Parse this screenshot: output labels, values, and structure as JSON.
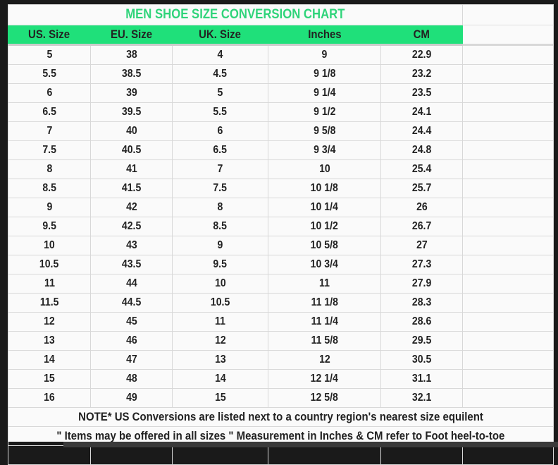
{
  "title": "MEN SHOE SIZE CONVERSION CHART",
  "headers": [
    "US. Size",
    "EU. Size",
    "UK. Size",
    "Inches",
    "CM"
  ],
  "rows": [
    [
      "5",
      "38",
      "4",
      "9",
      "22.9"
    ],
    [
      "5.5",
      "38.5",
      "4.5",
      "9 1/8",
      "23.2"
    ],
    [
      "6",
      "39",
      "5",
      "9 1/4",
      "23.5"
    ],
    [
      "6.5",
      "39.5",
      "5.5",
      "9 1/2",
      "24.1"
    ],
    [
      "7",
      "40",
      "6",
      "9 5/8",
      "24.4"
    ],
    [
      "7.5",
      "40.5",
      "6.5",
      "9 3/4",
      "24.8"
    ],
    [
      "8",
      "41",
      "7",
      "10",
      "25.4"
    ],
    [
      "8.5",
      "41.5",
      "7.5",
      "10 1/8",
      "25.7"
    ],
    [
      "9",
      "42",
      "8",
      "10 1/4",
      "26"
    ],
    [
      "9.5",
      "42.5",
      "8.5",
      "10 1/2",
      "26.7"
    ],
    [
      "10",
      "43",
      "9",
      "10 5/8",
      "27"
    ],
    [
      "10.5",
      "43.5",
      "9.5",
      "10 3/4",
      "27.3"
    ],
    [
      "11",
      "44",
      "10",
      "11",
      "27.9"
    ],
    [
      "11.5",
      "44.5",
      "10.5",
      "11 1/8",
      "28.3"
    ],
    [
      "12",
      "45",
      "11",
      "11 1/4",
      "28.6"
    ],
    [
      "13",
      "46",
      "12",
      "11 5/8",
      "29.5"
    ],
    [
      "14",
      "47",
      "13",
      "12",
      "30.5"
    ],
    [
      "15",
      "48",
      "14",
      "12 1/4",
      "31.1"
    ],
    [
      "16",
      "49",
      "15",
      "12 5/8",
      "32.1"
    ]
  ],
  "notes": [
    "NOTE* US Conversions are listed next to a country region's nearest size equilent",
    "\" Items may be offered in all sizes \" Measurement in Inches & CM refer to Foot heel-to-toe"
  ],
  "colors": {
    "header_bg": "#1fe07a",
    "title": "#2fd47a"
  }
}
